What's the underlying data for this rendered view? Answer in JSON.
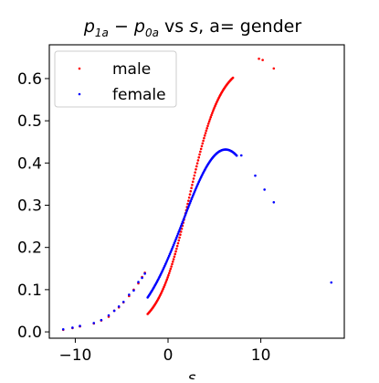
{
  "chart_data": {
    "type": "scatter",
    "title_parts": {
      "p1": "p",
      "p1_sub": "1a",
      "minus": " − ",
      "p0": "p",
      "p0_sub": "0a",
      "vs": " vs ",
      "s": "s",
      "rest": ", a= gender"
    },
    "xlabel": "s",
    "ylabel": "",
    "xlim": [
      -12.8,
      19.0
    ],
    "ylim": [
      -0.015,
      0.68
    ],
    "xticks": [
      -10,
      0,
      10
    ],
    "xtick_labels": [
      "−10",
      "0",
      "10"
    ],
    "yticks": [
      0.0,
      0.1,
      0.2,
      0.3,
      0.4,
      0.5,
      0.6
    ],
    "ytick_labels": [
      "0.0",
      "0.1",
      "0.2",
      "0.3",
      "0.4",
      "0.5",
      "0.6"
    ],
    "grid": false,
    "legend_position": "upper-left",
    "series": [
      {
        "name": "male",
        "color": "#ff0000",
        "curve": {
          "from": -2.2,
          "to": 7.0,
          "step": 0.08,
          "kind": "male"
        },
        "points": [
          [
            -11.3,
            0.005
          ],
          [
            -10.3,
            0.009
          ],
          [
            -9.5,
            0.013
          ],
          [
            -8.0,
            0.02
          ],
          [
            -7.2,
            0.027
          ],
          [
            -6.4,
            0.036
          ],
          [
            -5.8,
            0.05
          ],
          [
            -5.3,
            0.058
          ],
          [
            -4.8,
            0.07
          ],
          [
            -4.2,
            0.085
          ],
          [
            -3.7,
            0.1
          ],
          [
            -3.2,
            0.115
          ],
          [
            -2.8,
            0.13
          ],
          [
            -2.5,
            0.14
          ],
          [
            9.8,
            0.647
          ],
          [
            10.2,
            0.644
          ],
          [
            11.4,
            0.624
          ]
        ]
      },
      {
        "name": "female",
        "color": "#0000ff",
        "curve": {
          "from": -2.2,
          "to": 7.4,
          "step": 0.08,
          "kind": "female"
        },
        "points": [
          [
            -11.3,
            0.006
          ],
          [
            -10.3,
            0.01
          ],
          [
            -9.5,
            0.014
          ],
          [
            -8.0,
            0.021
          ],
          [
            -7.2,
            0.028
          ],
          [
            -6.4,
            0.039
          ],
          [
            -5.8,
            0.05
          ],
          [
            -5.3,
            0.06
          ],
          [
            -4.8,
            0.071
          ],
          [
            -4.2,
            0.088
          ],
          [
            -3.7,
            0.098
          ],
          [
            -3.2,
            0.118
          ],
          [
            -2.8,
            0.128
          ],
          [
            -2.5,
            0.138
          ],
          [
            7.9,
            0.418
          ],
          [
            9.4,
            0.37
          ],
          [
            10.4,
            0.337
          ],
          [
            11.4,
            0.307
          ],
          [
            17.6,
            0.117
          ]
        ]
      }
    ]
  }
}
